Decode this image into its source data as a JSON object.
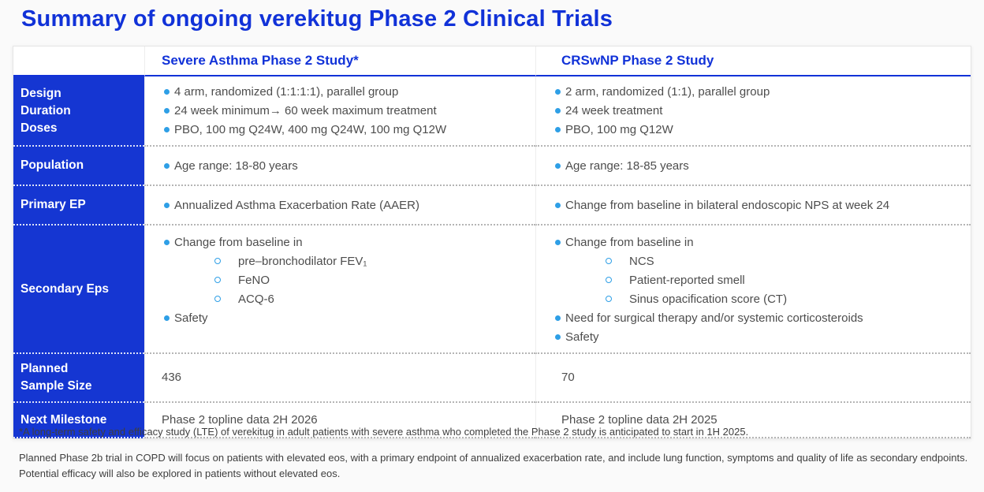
{
  "title": "Summary of ongoing verekitug Phase 2 Clinical Trials",
  "colors": {
    "brand_blue": "#1132d8",
    "cell_blue": "#1536d2",
    "bullet_blue": "#2e9fe6",
    "body_text": "#4d4d4d",
    "footnote_text": "#3e3e3e"
  },
  "table": {
    "column_headers": [
      "Severe Asthma Phase 2 Study*",
      "CRSwNP Phase 2 Study"
    ],
    "rows": [
      {
        "label_lines": [
          "Design",
          "Duration",
          "Doses"
        ],
        "asthma": {
          "items": [
            {
              "marker": "dot",
              "text": "4 arm, randomized (1:1:1:1), parallel group"
            },
            {
              "marker": "dot",
              "text": "24 week minimum→ 60 week maximum treatment"
            },
            {
              "marker": "dot",
              "text": "PBO, 100 mg Q24W, 400 mg Q24W, 100 mg Q12W"
            }
          ]
        },
        "crswnp": {
          "items": [
            {
              "marker": "dot",
              "text": "2 arm, randomized (1:1), parallel group"
            },
            {
              "marker": "dot",
              "text": "24 week treatment"
            },
            {
              "marker": "dot",
              "text": "PBO, 100 mg Q12W"
            }
          ]
        }
      },
      {
        "label_lines": [
          "Population"
        ],
        "asthma": {
          "items": [
            {
              "marker": "dot",
              "text": "Age range: 18-80 years"
            }
          ]
        },
        "crswnp": {
          "items": [
            {
              "marker": "dot",
              "text": "Age range: 18-85 years"
            }
          ]
        }
      },
      {
        "label_lines": [
          "Primary EP"
        ],
        "asthma": {
          "items": [
            {
              "marker": "dot",
              "text": "Annualized Asthma Exacerbation Rate (AAER)"
            }
          ]
        },
        "crswnp": {
          "items": [
            {
              "marker": "dot",
              "text": "Change from baseline in bilateral endoscopic NPS at week 24"
            }
          ]
        }
      },
      {
        "label_lines": [
          "Secondary Eps"
        ],
        "asthma": {
          "items": [
            {
              "marker": "dot",
              "text": "Change from baseline in"
            },
            {
              "marker": "circle",
              "text": "pre–bronchodilator FEV₁"
            },
            {
              "marker": "circle",
              "text": "FeNO"
            },
            {
              "marker": "circle",
              "text": "ACQ-6"
            },
            {
              "marker": "dot",
              "text": "Safety"
            }
          ]
        },
        "crswnp": {
          "items": [
            {
              "marker": "dot",
              "text": "Change from baseline in"
            },
            {
              "marker": "circle",
              "text": "NCS"
            },
            {
              "marker": "circle",
              "text": "Patient-reported smell"
            },
            {
              "marker": "circle",
              "text": "Sinus opacification score (CT)"
            },
            {
              "marker": "dot",
              "text": "Need for surgical therapy and/or systemic corticosteroids"
            },
            {
              "marker": "dot",
              "text": "Safety"
            }
          ]
        }
      },
      {
        "label_lines": [
          "Planned",
          "Sample Size"
        ],
        "asthma": {
          "items": [
            {
              "marker": "none",
              "text": "436"
            }
          ]
        },
        "crswnp": {
          "items": [
            {
              "marker": "none",
              "text": "70"
            }
          ]
        }
      },
      {
        "label_lines": [
          "Next Milestone"
        ],
        "asthma": {
          "items": [
            {
              "marker": "none",
              "text": "Phase 2 topline data 2H 2026"
            }
          ]
        },
        "crswnp": {
          "items": [
            {
              "marker": "none",
              "text": "Phase 2 topline data 2H 2025"
            }
          ]
        }
      }
    ]
  },
  "footnotes": [
    "*A long-term safety and efficacy study (LTE) of verekitug in adult patients with severe asthma who completed the Phase 2 study is anticipated to start in 1H 2025.",
    "Planned Phase 2b trial in COPD will focus on patients with elevated eos, with a primary endpoint of annualized exacerbation rate, and include lung function, symptoms and quality of life as secondary endpoints. Potential efficacy will also be explored in patients without elevated eos."
  ]
}
